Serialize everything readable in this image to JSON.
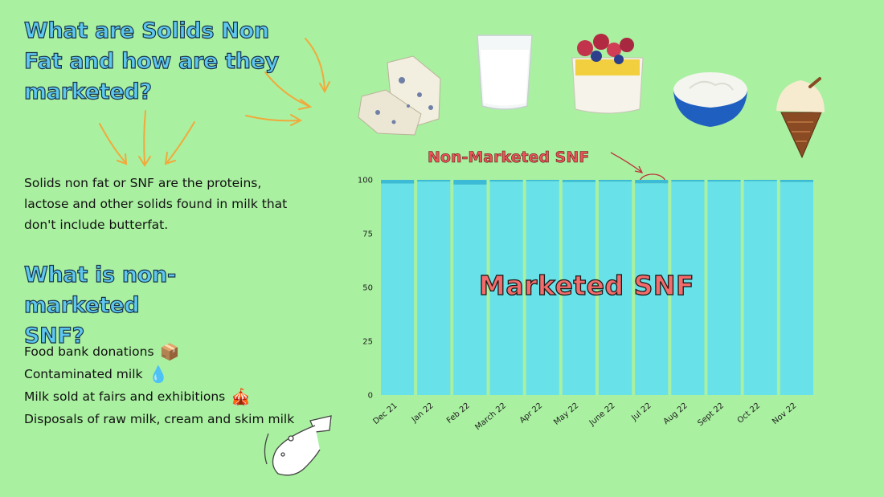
{
  "heading1": [
    "What are Solids Non",
    "Fat and how are they",
    "marketed?"
  ],
  "intro_text": [
    "Solids non fat or SNF are the proteins,",
    "lactose and other solids found in milk that",
    "don't include butterfat."
  ],
  "heading2": [
    "What is non-marketed",
    "SNF?"
  ],
  "reasons": [
    {
      "text": "Food bank donations",
      "icon": "produce-box-icon",
      "glyph": "📦"
    },
    {
      "text": "Contaminated milk",
      "icon": "droplet-icon",
      "glyph": "💧"
    },
    {
      "text": "Milk sold at fairs and exhibitions",
      "icon": "circus-tent-icon",
      "glyph": "🎪"
    },
    {
      "text": "Disposals of raw milk, cream and skim milk",
      "icon": "",
      "glyph": ""
    }
  ],
  "images": [
    "blue-cheese",
    "milk-glass",
    "parfait-dessert",
    "yogurt-bowl",
    "ice-cream-cone",
    "spilled-milk-glass"
  ],
  "colors": {
    "background": "#a9f0a0",
    "marketed": "#68e2e8",
    "non_marketed": "#3bbbd6",
    "heading": "#5ec8ef",
    "overlay": "#f46b6b",
    "annotation": "#e8555a",
    "arrows": "#f2a93b"
  },
  "chart_data": {
    "type": "bar",
    "stacked": true,
    "categories": [
      "Dec 21",
      "Jan 22",
      "Feb 22",
      "March 22",
      "Apr 22",
      "May 22",
      "June 22",
      "Jul 22",
      "Aug 22",
      "Sept 22",
      "Oct 22",
      "Nov 22"
    ],
    "series": [
      {
        "name": "Marketed SNF",
        "values": [
          98.3,
          99.2,
          97.8,
          99.2,
          99.4,
          99.0,
          99.2,
          98.4,
          99.2,
          99.2,
          99.4,
          99.0
        ]
      },
      {
        "name": "Non-Marketed SNF",
        "values": [
          1.7,
          0.8,
          2.2,
          0.8,
          0.6,
          1.0,
          0.8,
          1.6,
          0.8,
          0.8,
          0.6,
          1.0
        ]
      }
    ],
    "y_ticks": [
      "0",
      "25",
      "50",
      "75",
      "100"
    ],
    "ylim": [
      0,
      100
    ],
    "grid": false,
    "overlay_label": "Marketed SNF",
    "annotation_label": "Non-Marketed SNF"
  }
}
